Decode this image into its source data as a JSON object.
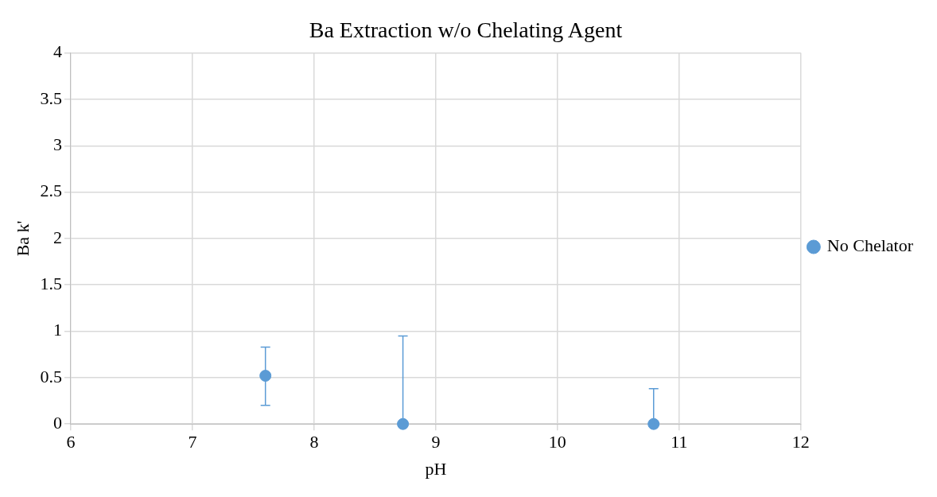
{
  "chart_data": {
    "type": "scatter",
    "title": "Ba Extraction w/o Chelating Agent",
    "xlabel": "pH",
    "ylabel": "Ba k'",
    "x": [
      7.6,
      8.73,
      10.79
    ],
    "series": [
      {
        "name": "No Chelator",
        "color": "#5b9bd5",
        "values": [
          0.52,
          0,
          0
        ],
        "errors": [
          [
            0.2,
            0.83
          ],
          [
            0,
            0.95
          ],
          [
            0,
            0.38
          ]
        ]
      }
    ],
    "xlim": [
      6,
      12
    ],
    "xticks": [
      6,
      7,
      8,
      9,
      10,
      11,
      12
    ],
    "ylim": [
      0,
      4
    ],
    "yticks": [
      0,
      0.5,
      1,
      1.5,
      2,
      2.5,
      3,
      3.5,
      4
    ],
    "grid": true,
    "legend": "right",
    "marker": "circle"
  }
}
